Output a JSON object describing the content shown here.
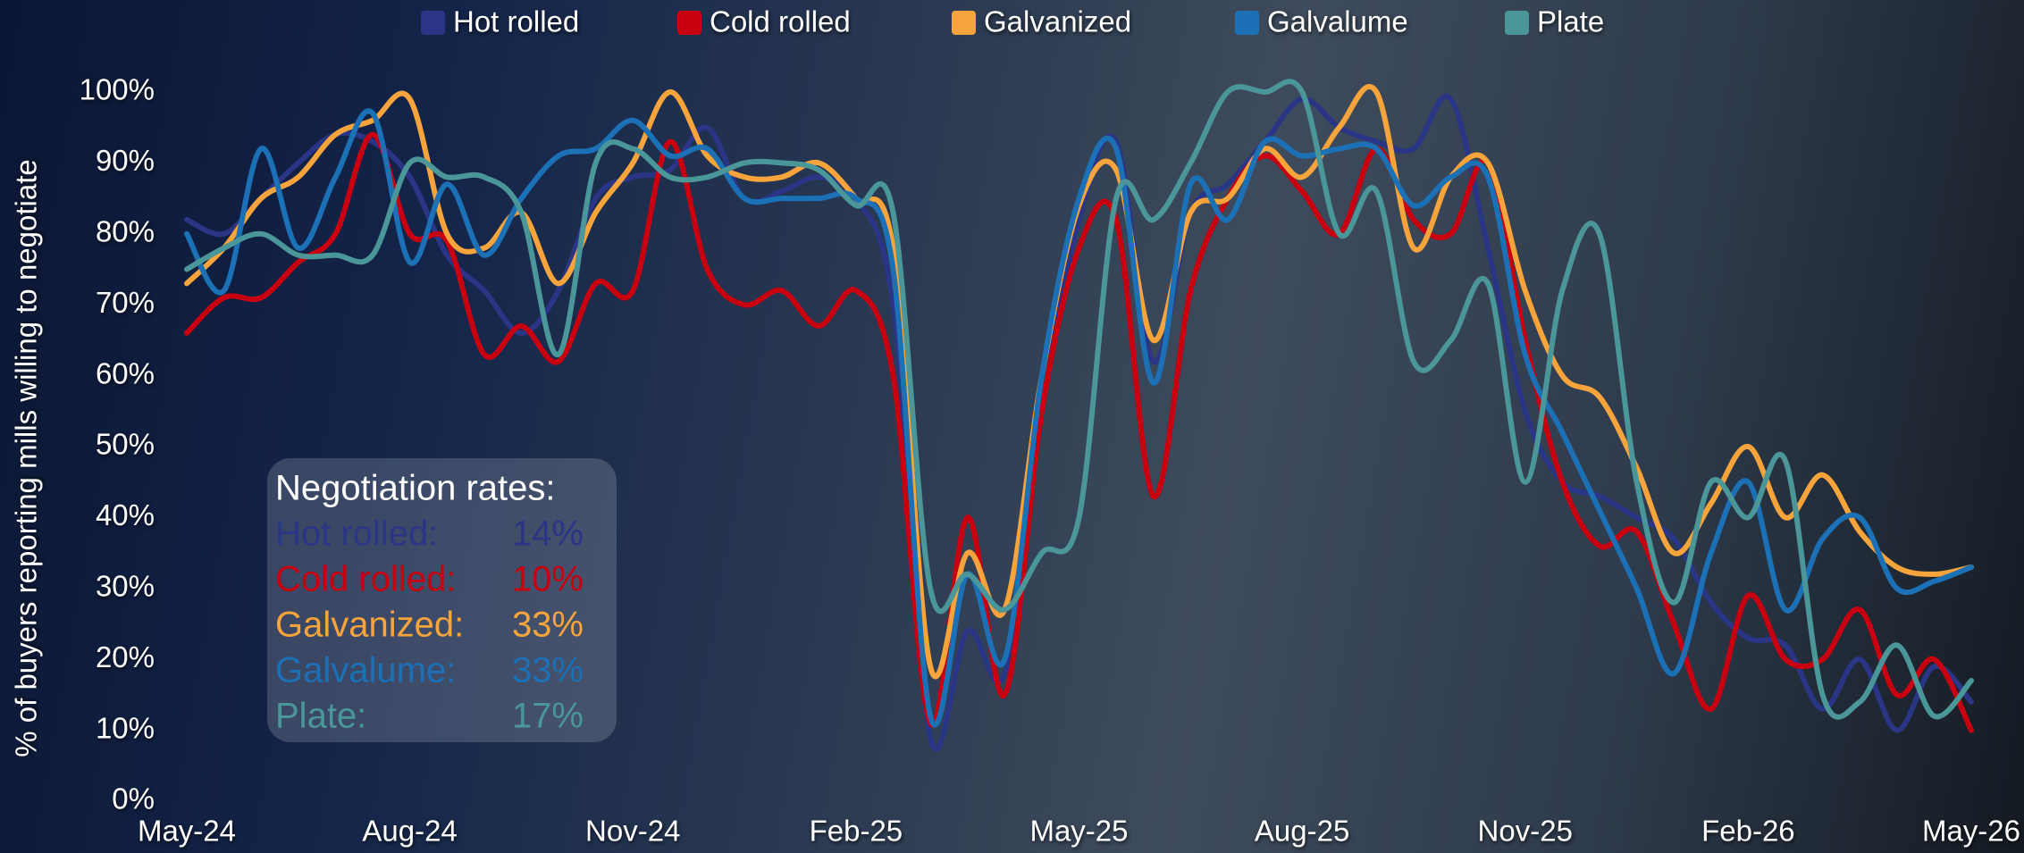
{
  "chart_data": {
    "type": "line",
    "y_label": "% of buyers reporting mills willing to negotiate",
    "categories": [
      "May-24",
      null,
      null,
      null,
      null,
      null,
      "Aug-24",
      null,
      null,
      null,
      null,
      null,
      "Nov-24",
      null,
      null,
      null,
      null,
      null,
      "Feb-25",
      null,
      null,
      null,
      null,
      null,
      "May-25",
      null,
      null,
      null,
      null,
      null,
      "Aug-25",
      null,
      null,
      null,
      null,
      null,
      "Nov-25",
      null,
      null,
      null,
      null,
      null,
      "Feb-26",
      null,
      null,
      null,
      null,
      null,
      "May-26"
    ],
    "series": [
      {
        "name": "Hot rolled",
        "color": "#2a3585",
        "values": [
          82,
          80,
          85,
          90,
          94,
          93,
          88,
          77,
          72,
          66,
          72,
          85,
          88,
          89,
          95,
          85,
          86,
          88,
          85,
          70,
          9,
          24,
          18,
          55,
          82,
          93,
          62,
          83,
          87,
          93,
          99,
          95,
          93,
          92,
          99,
          78,
          55,
          45,
          43,
          40,
          37,
          28,
          23,
          22,
          13,
          20,
          10,
          19,
          14
        ]
      },
      {
        "name": "Cold rolled",
        "color": "#c8000f",
        "values": [
          66,
          71,
          71,
          76,
          80,
          94,
          80,
          79,
          63,
          67,
          62,
          73,
          72,
          93,
          75,
          70,
          72,
          67,
          72,
          60,
          11,
          40,
          15,
          55,
          78,
          82,
          43,
          72,
          85,
          91,
          86,
          80,
          92,
          82,
          80,
          90,
          65,
          45,
          36,
          38,
          25,
          13,
          29,
          20,
          20,
          27,
          15,
          20,
          10
        ]
      },
      {
        "name": "Galvanized",
        "color": "#f7a43c",
        "values": [
          73,
          78,
          85,
          88,
          94,
          96,
          99,
          80,
          78,
          83,
          73,
          83,
          90,
          100,
          91,
          88,
          88,
          90,
          85,
          78,
          19,
          35,
          27,
          60,
          84,
          89,
          65,
          83,
          85,
          92,
          88,
          95,
          100,
          78,
          88,
          90,
          72,
          60,
          57,
          47,
          35,
          42,
          50,
          40,
          46,
          38,
          33,
          32,
          33
        ]
      },
      {
        "name": "Galvalume",
        "color": "#1b70b6",
        "values": [
          80,
          72,
          92,
          78,
          88,
          97,
          76,
          87,
          77,
          85,
          91,
          92,
          96,
          91,
          92,
          85,
          85,
          85,
          85,
          75,
          12,
          32,
          20,
          60,
          85,
          92,
          59,
          87,
          82,
          93,
          91,
          92,
          92,
          84,
          88,
          88,
          63,
          52,
          41,
          30,
          18,
          35,
          45,
          27,
          37,
          40,
          30,
          31,
          33
        ]
      },
      {
        "name": "Plate",
        "color": "#4b9698",
        "values": [
          75,
          78,
          80,
          77,
          77,
          77,
          90,
          88,
          88,
          83,
          63,
          90,
          92,
          88,
          88,
          90,
          90,
          89,
          84,
          83,
          30,
          32,
          27,
          35,
          40,
          85,
          82,
          90,
          100,
          100,
          100,
          80,
          86,
          62,
          65,
          73,
          45,
          72,
          80,
          45,
          28,
          45,
          40,
          48,
          15,
          14,
          22,
          12,
          17
        ]
      }
    ],
    "ylim": [
      0,
      100
    ],
    "yticks": [
      {
        "value": 0,
        "label": "0%"
      },
      {
        "value": 10,
        "label": "10%"
      },
      {
        "value": 20,
        "label": "20%"
      },
      {
        "value": 30,
        "label": "30%"
      },
      {
        "value": 40,
        "label": "40%"
      },
      {
        "value": 50,
        "label": "50%"
      },
      {
        "value": 60,
        "label": "60%"
      },
      {
        "value": 70,
        "label": "70%"
      },
      {
        "value": 80,
        "label": "80%"
      },
      {
        "value": 90,
        "label": "90%"
      },
      {
        "value": 100,
        "label": "100%"
      }
    ],
    "legend": "top",
    "annotation": {
      "title": "Negotiation rates:",
      "rows": [
        {
          "label": "Hot rolled:",
          "value": "14%"
        },
        {
          "label": "Cold rolled:",
          "value": "10%"
        },
        {
          "label": "Galvanized:",
          "value": "33%"
        },
        {
          "label": "Galvalume:",
          "value": "33%"
        },
        {
          "label": "Plate:",
          "value": "17%"
        }
      ]
    }
  }
}
